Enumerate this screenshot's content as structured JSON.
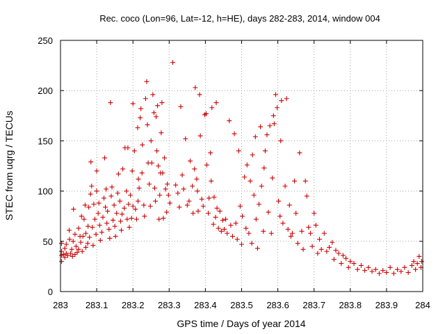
{
  "chart_data": {
    "type": "scatter",
    "title": "Rec. coco (Lon=96, Lat=-12, h=HE), days 282-283, 2014, window 004",
    "xlabel": "GPS time / Days of year 2014",
    "ylabel": "STEC from uqrg / TECUs",
    "xlim": [
      283,
      284
    ],
    "ylim": [
      0,
      250
    ],
    "x_ticks": [
      "283",
      "283.1",
      "283.2",
      "283.3",
      "283.4",
      "283.5",
      "283.6",
      "283.7",
      "283.8",
      "283.9",
      "284"
    ],
    "y_ticks": [
      "0",
      "50",
      "100",
      "150",
      "200",
      "250"
    ],
    "grid": true,
    "marker": "plus",
    "color": "#cc0000",
    "points": [
      [
        283.003,
        30
      ],
      [
        283.003,
        36
      ],
      [
        283.003,
        40
      ],
      [
        283.003,
        48
      ],
      [
        283.008,
        37
      ],
      [
        283.012,
        34
      ],
      [
        283.012,
        43
      ],
      [
        283.016,
        38
      ],
      [
        283.016,
        47
      ],
      [
        283.02,
        36
      ],
      [
        283.024,
        61
      ],
      [
        283.025,
        52
      ],
      [
        283.028,
        38
      ],
      [
        283.031,
        42
      ],
      [
        283.033,
        35
      ],
      [
        283.035,
        50
      ],
      [
        283.036,
        82
      ],
      [
        283.04,
        37
      ],
      [
        283.04,
        57
      ],
      [
        283.043,
        45
      ],
      [
        283.046,
        39
      ],
      [
        283.05,
        42
      ],
      [
        283.05,
        63
      ],
      [
        283.054,
        55
      ],
      [
        283.056,
        49
      ],
      [
        283.058,
        75
      ],
      [
        283.06,
        40
      ],
      [
        283.062,
        55
      ],
      [
        283.065,
        72
      ],
      [
        283.068,
        86
      ],
      [
        283.07,
        44
      ],
      [
        283.07,
        58
      ],
      [
        283.075,
        48
      ],
      [
        283.076,
        65
      ],
      [
        283.078,
        84
      ],
      [
        283.08,
        54
      ],
      [
        283.083,
        97
      ],
      [
        283.084,
        129
      ],
      [
        283.086,
        105
      ],
      [
        283.088,
        64
      ],
      [
        283.09,
        46
      ],
      [
        283.092,
        87
      ],
      [
        283.095,
        72
      ],
      [
        283.098,
        57
      ],
      [
        283.1,
        120
      ],
      [
        283.1,
        100
      ],
      [
        283.104,
        78
      ],
      [
        283.106,
        88
      ],
      [
        283.108,
        66
      ],
      [
        283.11,
        51
      ],
      [
        283.114,
        59
      ],
      [
        283.117,
        74
      ],
      [
        283.12,
        93
      ],
      [
        283.122,
        133
      ],
      [
        283.124,
        84
      ],
      [
        283.126,
        102
      ],
      [
        283.128,
        68
      ],
      [
        283.13,
        80
      ],
      [
        283.134,
        62
      ],
      [
        283.136,
        53
      ],
      [
        283.138,
        188
      ],
      [
        283.14,
        95
      ],
      [
        283.142,
        104
      ],
      [
        283.145,
        71
      ],
      [
        283.148,
        86
      ],
      [
        283.15,
        65
      ],
      [
        283.152,
        55
      ],
      [
        283.155,
        78
      ],
      [
        283.158,
        98
      ],
      [
        283.16,
        117
      ],
      [
        283.164,
        90
      ],
      [
        283.166,
        70
      ],
      [
        283.168,
        61
      ],
      [
        283.17,
        77
      ],
      [
        283.172,
        122
      ],
      [
        283.176,
        83
      ],
      [
        283.178,
        143
      ],
      [
        283.182,
        100
      ],
      [
        283.184,
        72
      ],
      [
        283.186,
        143
      ],
      [
        283.188,
        87
      ],
      [
        283.19,
        64
      ],
      [
        283.193,
        96
      ],
      [
        283.196,
        73
      ],
      [
        283.198,
        120
      ],
      [
        283.2,
        187
      ],
      [
        283.2,
        85
      ],
      [
        283.204,
        140
      ],
      [
        283.207,
        82
      ],
      [
        283.21,
        72
      ],
      [
        283.213,
        163
      ],
      [
        283.214,
        90
      ],
      [
        283.215,
        112
      ],
      [
        283.217,
        103
      ],
      [
        283.22,
        173
      ],
      [
        283.222,
        182
      ],
      [
        283.225,
        118
      ],
      [
        283.226,
        146
      ],
      [
        283.23,
        86
      ],
      [
        283.232,
        75
      ],
      [
        283.235,
        192
      ],
      [
        283.238,
        209
      ],
      [
        283.24,
        166
      ],
      [
        283.242,
        128
      ],
      [
        283.245,
        107
      ],
      [
        283.248,
        85
      ],
      [
        283.25,
        150
      ],
      [
        283.252,
        128
      ],
      [
        283.255,
        196
      ],
      [
        283.258,
        178
      ],
      [
        283.26,
        103
      ],
      [
        283.262,
        90
      ],
      [
        283.264,
        174
      ],
      [
        283.266,
        140
      ],
      [
        283.268,
        185
      ],
      [
        283.27,
        125
      ],
      [
        283.272,
        72
      ],
      [
        283.274,
        96
      ],
      [
        283.276,
        118
      ],
      [
        283.278,
        158
      ],
      [
        283.28,
        188
      ],
      [
        283.282,
        118
      ],
      [
        283.284,
        73
      ],
      [
        283.287,
        133
      ],
      [
        283.29,
        102
      ],
      [
        283.293,
        79
      ],
      [
        283.295,
        107
      ],
      [
        283.298,
        96
      ],
      [
        283.302,
        88
      ],
      [
        283.31,
        228
      ],
      [
        283.318,
        106
      ],
      [
        283.324,
        98
      ],
      [
        283.328,
        84
      ],
      [
        283.332,
        184
      ],
      [
        283.336,
        116
      ],
      [
        283.34,
        102
      ],
      [
        283.345,
        152
      ],
      [
        283.35,
        86
      ],
      [
        283.355,
        90
      ],
      [
        283.358,
        130
      ],
      [
        283.364,
        105
      ],
      [
        283.366,
        78
      ],
      [
        283.37,
        122
      ],
      [
        283.372,
        203
      ],
      [
        283.376,
        112
      ],
      [
        283.378,
        100
      ],
      [
        283.38,
        80
      ],
      [
        283.384,
        196
      ],
      [
        283.386,
        155
      ],
      [
        283.39,
        92
      ],
      [
        283.394,
        85
      ],
      [
        283.398,
        176
      ],
      [
        283.402,
        177
      ],
      [
        283.404,
        126
      ],
      [
        283.408,
        78
      ],
      [
        283.41,
        93
      ],
      [
        283.414,
        138
      ],
      [
        283.416,
        110
      ],
      [
        283.418,
        183
      ],
      [
        283.422,
        67
      ],
      [
        283.424,
        94
      ],
      [
        283.428,
        74
      ],
      [
        283.43,
        188
      ],
      [
        283.432,
        83
      ],
      [
        283.436,
        63
      ],
      [
        283.44,
        80
      ],
      [
        283.444,
        60
      ],
      [
        283.448,
        71
      ],
      [
        283.452,
        62
      ],
      [
        283.456,
        72
      ],
      [
        283.46,
        58
      ],
      [
        283.466,
        170
      ],
      [
        283.47,
        66
      ],
      [
        283.475,
        55
      ],
      [
        283.48,
        157
      ],
      [
        283.484,
        68
      ],
      [
        283.488,
        52
      ],
      [
        283.492,
        140
      ],
      [
        283.496,
        85
      ],
      [
        283.5,
        47
      ],
      [
        283.502,
        75
      ],
      [
        283.508,
        114
      ],
      [
        283.512,
        63
      ],
      [
        283.515,
        126
      ],
      [
        283.52,
        58
      ],
      [
        283.524,
        110
      ],
      [
        283.528,
        48
      ],
      [
        283.53,
        136
      ],
      [
        283.534,
        96
      ],
      [
        283.538,
        154
      ],
      [
        283.54,
        72
      ],
      [
        283.544,
        43
      ],
      [
        283.548,
        87
      ],
      [
        283.552,
        164
      ],
      [
        283.555,
        105
      ],
      [
        283.56,
        60
      ],
      [
        283.562,
        123
      ],
      [
        283.565,
        140
      ],
      [
        283.57,
        156
      ],
      [
        283.574,
        79
      ],
      [
        283.578,
        165
      ],
      [
        283.582,
        58
      ],
      [
        283.585,
        113
      ],
      [
        283.588,
        175
      ],
      [
        283.59,
        167
      ],
      [
        283.594,
        196
      ],
      [
        283.598,
        183
      ],
      [
        283.602,
        90
      ],
      [
        283.606,
        75
      ],
      [
        283.608,
        150
      ],
      [
        283.61,
        190
      ],
      [
        283.614,
        68
      ],
      [
        283.62,
        105
      ],
      [
        283.624,
        192
      ],
      [
        283.628,
        62
      ],
      [
        283.632,
        86
      ],
      [
        283.636,
        55
      ],
      [
        283.64,
        58
      ],
      [
        283.646,
        110
      ],
      [
        283.65,
        78
      ],
      [
        283.655,
        48
      ],
      [
        283.66,
        138
      ],
      [
        283.666,
        60
      ],
      [
        283.67,
        42
      ],
      [
        283.676,
        110
      ],
      [
        283.68,
        95
      ],
      [
        283.685,
        64
      ],
      [
        283.69,
        58
      ],
      [
        283.695,
        45
      ],
      [
        283.7,
        78
      ],
      [
        283.705,
        66
      ],
      [
        283.71,
        38
      ],
      [
        283.715,
        52
      ],
      [
        283.72,
        42
      ],
      [
        283.728,
        58
      ],
      [
        283.735,
        40
      ],
      [
        283.742,
        44
      ],
      [
        283.75,
        49
      ],
      [
        283.755,
        32
      ],
      [
        283.76,
        41
      ],
      [
        283.768,
        38
      ],
      [
        283.775,
        28
      ],
      [
        283.78,
        36
      ],
      [
        283.788,
        33
      ],
      [
        283.795,
        24
      ],
      [
        283.8,
        30
      ],
      [
        283.81,
        28
      ],
      [
        283.82,
        22
      ],
      [
        283.83,
        26
      ],
      [
        283.84,
        21
      ],
      [
        283.85,
        24
      ],
      [
        283.86,
        20
      ],
      [
        283.87,
        22
      ],
      [
        283.88,
        18
      ],
      [
        283.89,
        21
      ],
      [
        283.9,
        19
      ],
      [
        283.91,
        24
      ],
      [
        283.92,
        18
      ],
      [
        283.93,
        22
      ],
      [
        283.94,
        20
      ],
      [
        283.95,
        24
      ],
      [
        283.96,
        19
      ],
      [
        283.97,
        26
      ],
      [
        283.975,
        30
      ],
      [
        283.98,
        22
      ],
      [
        283.985,
        28
      ],
      [
        283.99,
        35
      ],
      [
        283.995,
        24
      ],
      [
        283.997,
        30
      ]
    ]
  }
}
